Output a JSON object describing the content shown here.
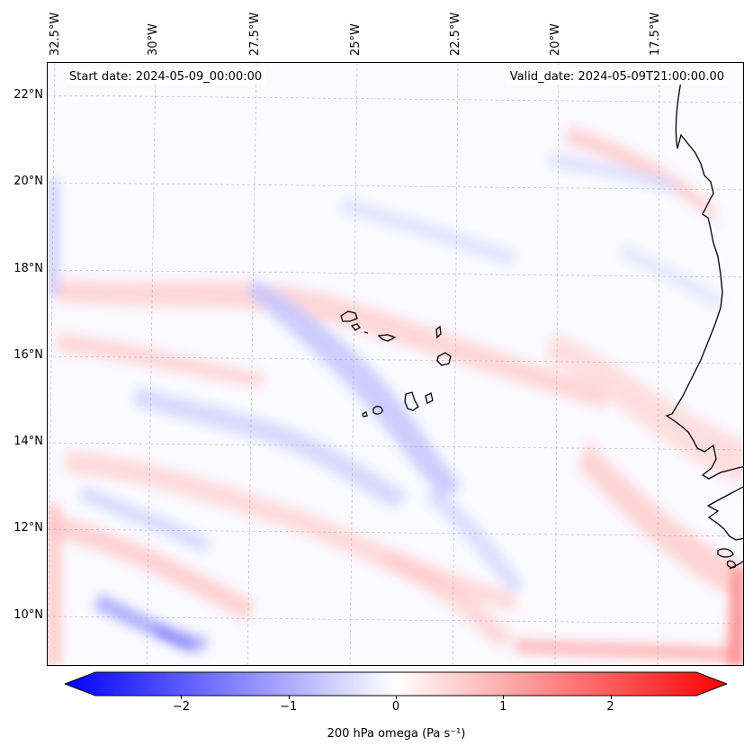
{
  "map": {
    "title_left": "Start date: 2024-05-09_00:00:00",
    "title_right": "Valid_date: 2024-05-09T21:00:00.00",
    "lon_labels": [
      "32.5°W",
      "30°W",
      "27.5°W",
      "25°W",
      "22.5°W",
      "20°W",
      "17.5°W"
    ],
    "lat_labels": [
      "22°N",
      "20°N",
      "18°N",
      "16°N",
      "14°N",
      "12°N",
      "10°N"
    ],
    "field": "200 hPa omega",
    "extent": {
      "lon_min": -33.5,
      "lon_max": -15.8,
      "lat_min": 8.9,
      "lat_max": 22.8
    }
  },
  "colorbar": {
    "label": "200 hPa omega (Pa s⁻¹)",
    "ticks": [
      "−2",
      "−1",
      "0",
      "1",
      "2"
    ],
    "min": -2.8,
    "max": 2.8,
    "colors": {
      "low": "#0000ff",
      "mid": "#ffffff",
      "high": "#ff0000"
    }
  },
  "colors": {
    "coast": "#000000",
    "grid": "#b0b0b0"
  }
}
